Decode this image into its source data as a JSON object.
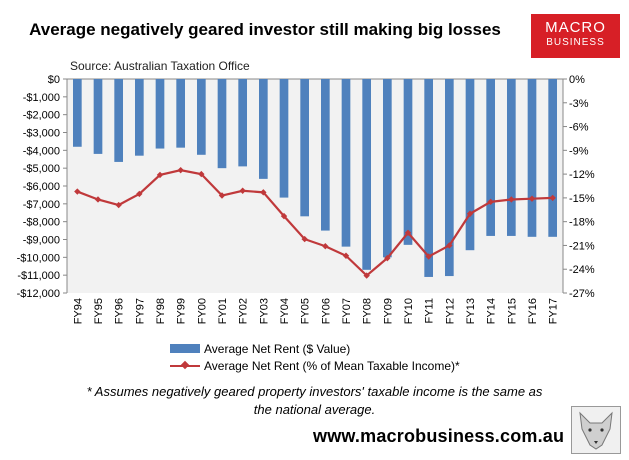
{
  "title": "Average negatively geared investor still making big losses",
  "logo": {
    "line1": "MACRO",
    "line2": "BUSINESS"
  },
  "source": "Source: Australian Taxation Office",
  "chart_data": {
    "type": "bar+line",
    "categories": [
      "FY94",
      "FY95",
      "FY96",
      "FY97",
      "FY98",
      "FY99",
      "FY00",
      "FY01",
      "FY02",
      "FY03",
      "FY04",
      "FY05",
      "FY06",
      "FY07",
      "FY08",
      "FY09",
      "FY10",
      "FY11",
      "FY12",
      "FY13",
      "FY14",
      "FY15",
      "FY16",
      "FY17"
    ],
    "series": [
      {
        "name": "Average Net Rent ($ Value)",
        "type": "bar",
        "axis": "left",
        "values": [
          -3800,
          -4200,
          -4650,
          -4300,
          -3900,
          -3850,
          -4250,
          -5000,
          -4900,
          -5600,
          -6650,
          -7700,
          -8500,
          -9400,
          -10700,
          -10000,
          -9300,
          -11100,
          -11050,
          -9600,
          -8800,
          -8800,
          -8850,
          -8850
        ]
      },
      {
        "name": "Average Net Rent (% of Mean Taxable Income)*",
        "type": "line",
        "axis": "right",
        "values": [
          -14.2,
          -15.2,
          -15.9,
          -14.5,
          -12.1,
          -11.5,
          -12.0,
          -14.7,
          -14.1,
          -14.3,
          -17.3,
          -20.2,
          -21.1,
          -22.3,
          -24.8,
          -22.6,
          -19.4,
          -22.4,
          -21.0,
          -17.0,
          -15.5,
          -15.2,
          -15.1,
          -15.0
        ]
      }
    ],
    "left_axis": {
      "ticks": [
        "$0",
        "-$1,000",
        "-$2,000",
        "-$3,000",
        "-$4,000",
        "-$5,000",
        "-$6,000",
        "-$7,000",
        "-$8,000",
        "-$9,000",
        "-$10,000",
        "-$11,000",
        "-$12,000"
      ],
      "min": -12000,
      "max": 0
    },
    "right_axis": {
      "ticks": [
        "0%",
        "-3%",
        "-6%",
        "-9%",
        "-12%",
        "-15%",
        "-18%",
        "-21%",
        "-24%",
        "-27%"
      ],
      "min": -27,
      "max": 0
    },
    "colors": {
      "bar": "#4f81bd",
      "line": "#c0393b",
      "plot_bg": "#f2f2f2"
    }
  },
  "legend": {
    "bar_label": "Average Net Rent ($ Value)",
    "line_label": "Average Net Rent (% of Mean Taxable Income)*"
  },
  "footnote": {
    "line1": "* Assumes negatively geared property investors' taxable income is the same as",
    "line2": "the national average."
  },
  "website": "www.macrobusiness.com.au"
}
